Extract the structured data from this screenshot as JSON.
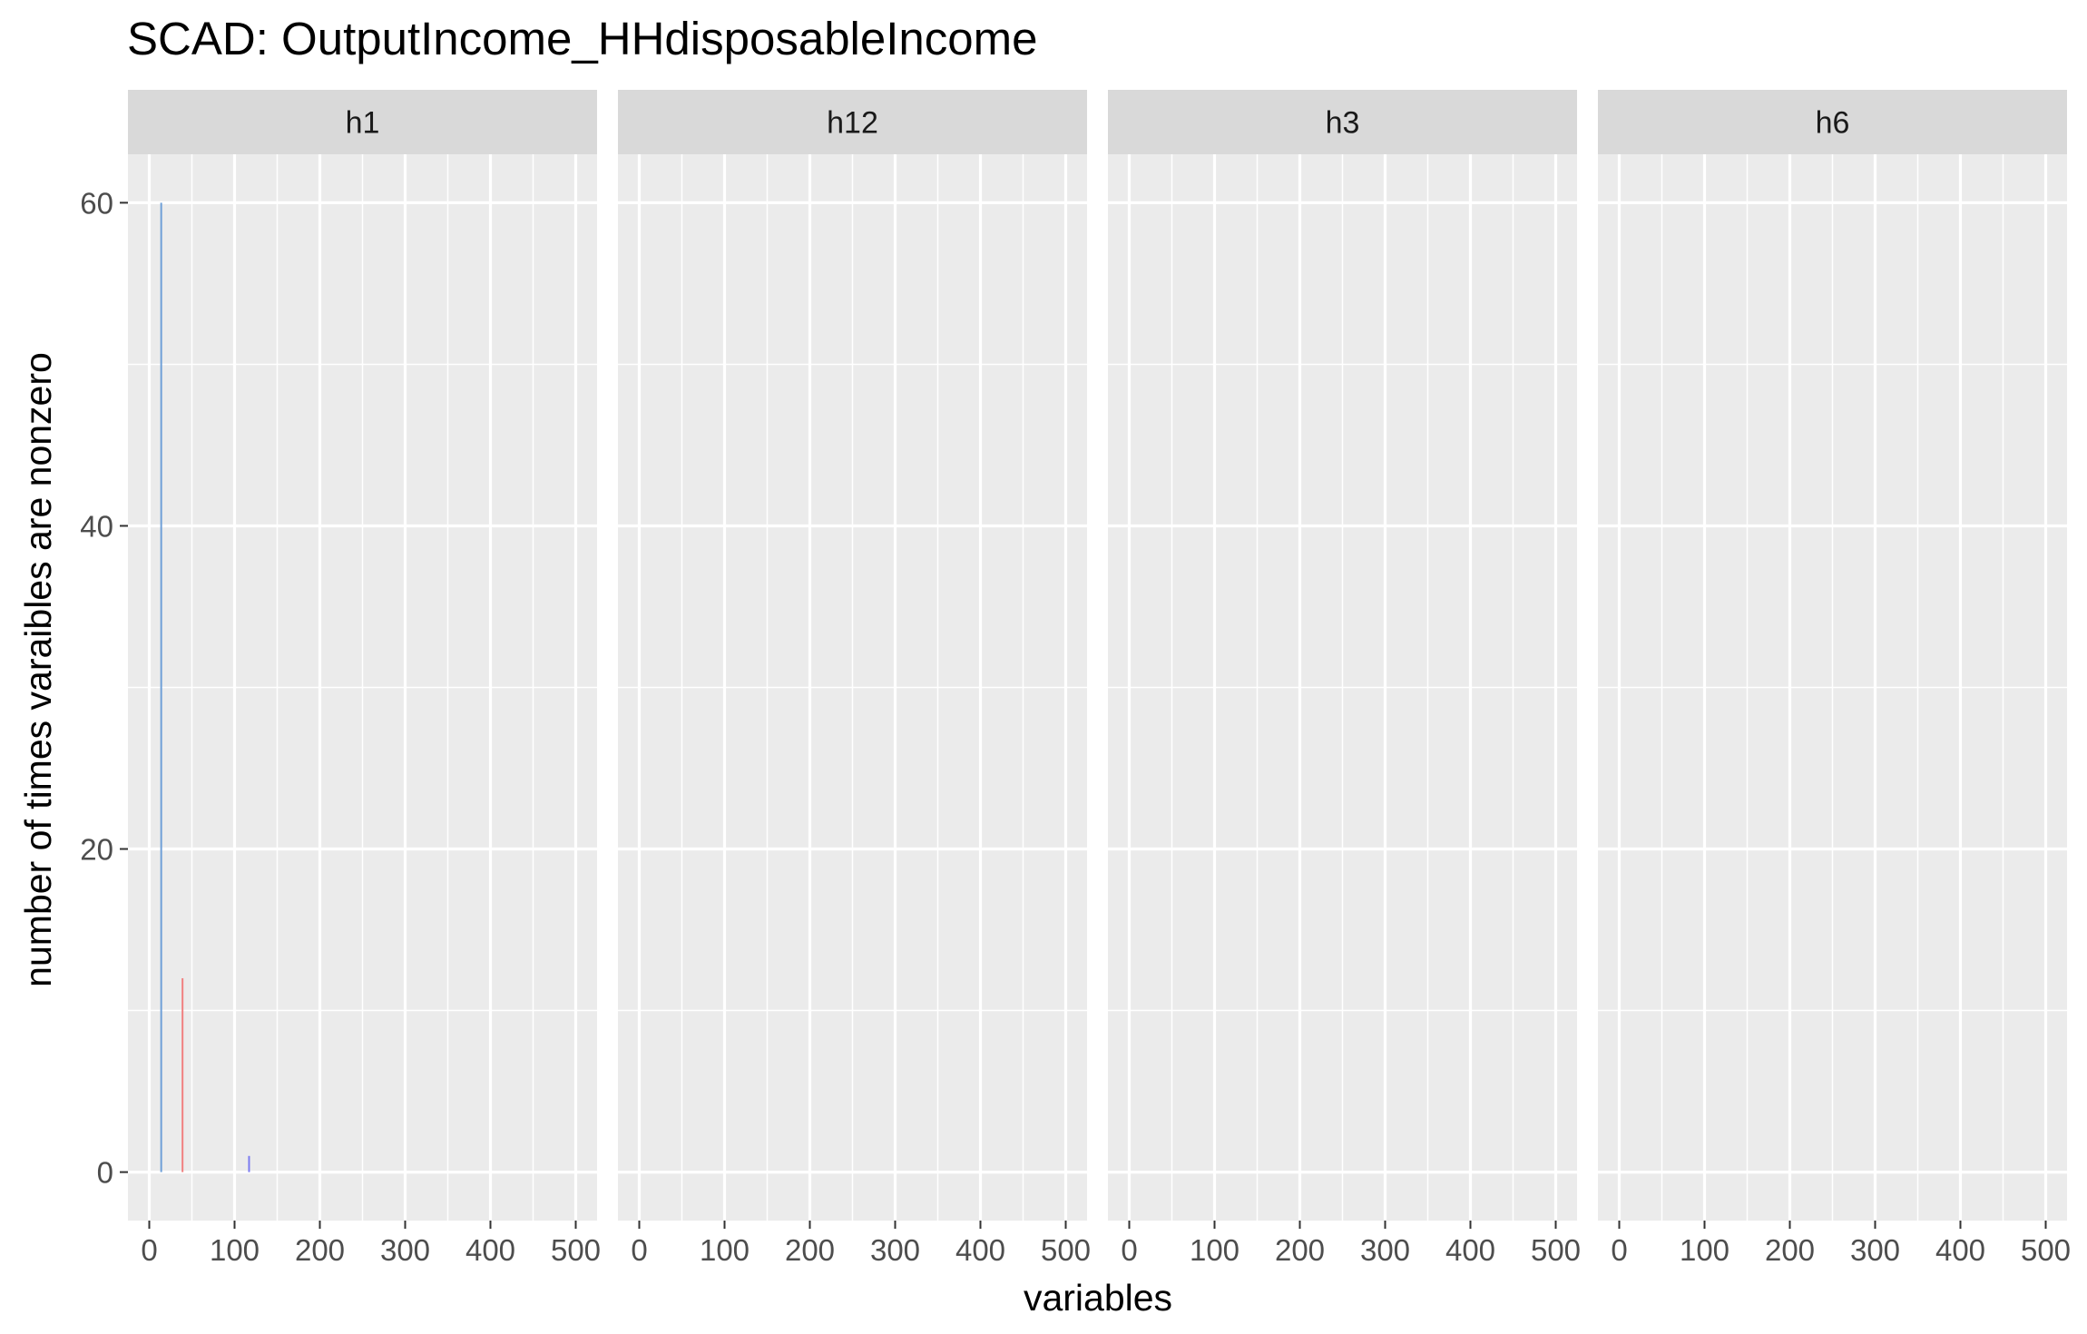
{
  "chart_data": {
    "type": "bar",
    "title": "SCAD: OutputIncome_HHdisposableIncome",
    "xlabel": "variables",
    "ylabel": "number of times varaibles are nonzero",
    "xlim": [
      -25,
      525
    ],
    "ylim": [
      -3,
      63
    ],
    "x_ticks": [
      "0",
      "100",
      "200",
      "300",
      "400",
      "500"
    ],
    "x_tick_values": [
      0,
      100,
      200,
      300,
      400,
      500
    ],
    "y_ticks": [
      "0",
      "20",
      "40",
      "60"
    ],
    "y_tick_values": [
      0,
      20,
      40,
      60
    ],
    "grid": true,
    "legend": "none",
    "facets": [
      {
        "label": "h1",
        "bars": [
          {
            "x": 14,
            "value": 60,
            "color": "#6fa0d8"
          },
          {
            "x": 39,
            "value": 12,
            "color": "#f08080"
          },
          {
            "x": 117,
            "value": 1,
            "color": "#7b7bf0"
          }
        ]
      },
      {
        "label": "h12",
        "bars": []
      },
      {
        "label": "h3",
        "bars": []
      },
      {
        "label": "h6",
        "bars": []
      }
    ],
    "colors": {
      "panel_bg": "#ebebeb",
      "strip_bg": "#d9d9d9",
      "grid": "#ffffff",
      "tick": "#333333"
    }
  }
}
